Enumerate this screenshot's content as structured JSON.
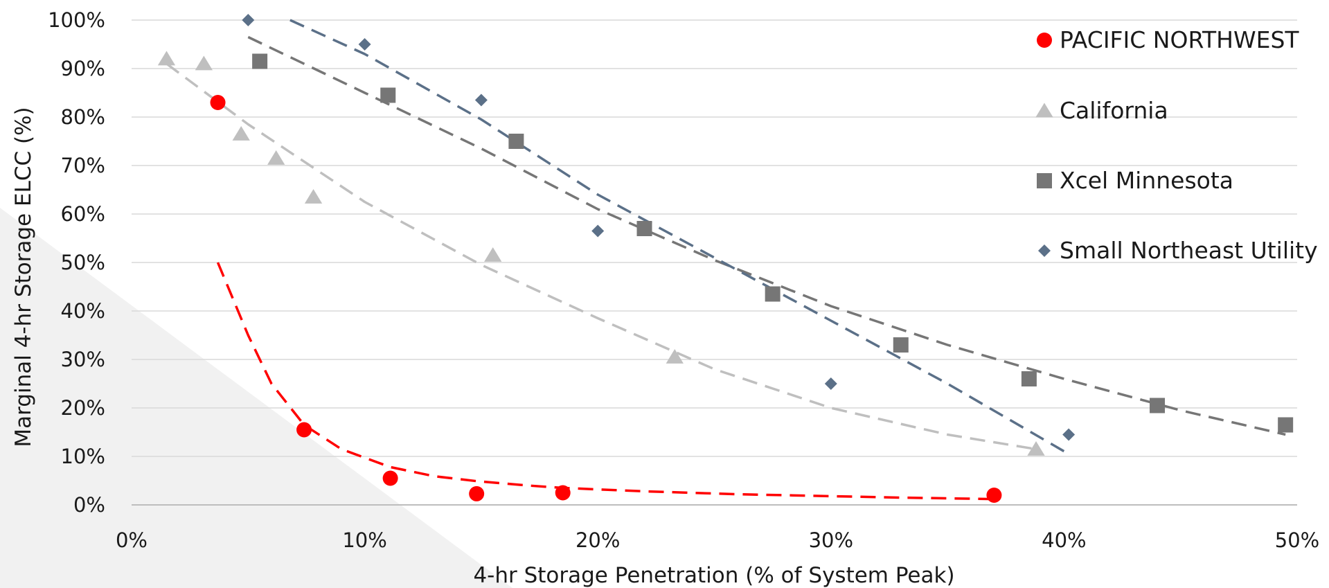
{
  "chart_data": {
    "type": "scatter",
    "title": "",
    "xlabel": "4-hr Storage Penetration (% of System Peak)",
    "ylabel": "Marginal 4-hr Storage ELCC (%)",
    "xlim": [
      0,
      50
    ],
    "ylim": [
      0,
      100
    ],
    "x_ticks": [
      0,
      10,
      20,
      30,
      40,
      50
    ],
    "x_tick_labels": [
      "0%",
      "10%",
      "20%",
      "30%",
      "40%",
      "50%"
    ],
    "y_ticks": [
      0,
      10,
      20,
      30,
      40,
      50,
      60,
      70,
      80,
      90,
      100
    ],
    "y_tick_labels": [
      "0%",
      "10%",
      "20%",
      "30%",
      "40%",
      "50%",
      "60%",
      "70%",
      "80%",
      "90%",
      "100%"
    ],
    "grid": "horizontal",
    "legend_position": "top-right",
    "series": [
      {
        "name": "PACIFIC NORTHWEST",
        "marker": "circle",
        "color": "#ff0000",
        "x": [
          3.7,
          7.4,
          11.1,
          14.8,
          18.5,
          37.0
        ],
        "y": [
          83,
          15.5,
          5.5,
          2.3,
          2.5,
          2.0
        ],
        "trendline": {
          "x": [
            3.7,
            5,
            6,
            7.4,
            9,
            11.1,
            13,
            14.8,
            17,
            18.5,
            22,
            26,
            30,
            33,
            37
          ],
          "y": [
            50,
            35,
            25,
            16.5,
            11.5,
            7.8,
            5.9,
            4.9,
            4.0,
            3.5,
            2.8,
            2.2,
            1.8,
            1.5,
            1.2
          ]
        }
      },
      {
        "name": "California",
        "marker": "triangle",
        "color": "#bfbfbf",
        "x": [
          1.5,
          3.1,
          4.7,
          6.2,
          7.8,
          15.5,
          23.3,
          38.8
        ],
        "y": [
          92,
          91,
          76.5,
          71.5,
          63.5,
          51.5,
          30.5,
          11.5
        ],
        "trendline": {
          "x": [
            1.5,
            5,
            10,
            15,
            20,
            25,
            30,
            35,
            38.8
          ],
          "y": [
            91,
            78.5,
            62.5,
            49.5,
            38.5,
            28,
            20,
            14.5,
            11.5
          ]
        }
      },
      {
        "name": "Xcel Minnesota",
        "marker": "square",
        "color": "#767676",
        "x": [
          5.5,
          11.0,
          16.5,
          22.0,
          27.5,
          33.0,
          38.5,
          44.0,
          49.5
        ],
        "y": [
          91.5,
          84.5,
          75,
          57,
          43.5,
          33,
          26,
          20.5,
          16.5
        ],
        "trendline": {
          "x": [
            5,
            10,
            15,
            20,
            25,
            30,
            35,
            40,
            45,
            49.5
          ],
          "y": [
            96.5,
            85,
            73.5,
            61,
            50.5,
            41,
            33,
            26,
            19.5,
            14.5
          ]
        }
      },
      {
        "name": "Small Northeast Utility",
        "marker": "diamond",
        "color": "#5b7088",
        "x": [
          5.0,
          10.0,
          15.0,
          20.0,
          30.0,
          40.2
        ],
        "y": [
          100,
          95,
          83.5,
          56.5,
          25,
          14.5
        ],
        "trendline": {
          "x": [
            6.8,
            10,
            15,
            20,
            25,
            30,
            35,
            40.2
          ],
          "y": [
            100,
            93,
            79.5,
            64,
            51,
            38,
            25,
            10.5
          ]
        }
      }
    ]
  }
}
